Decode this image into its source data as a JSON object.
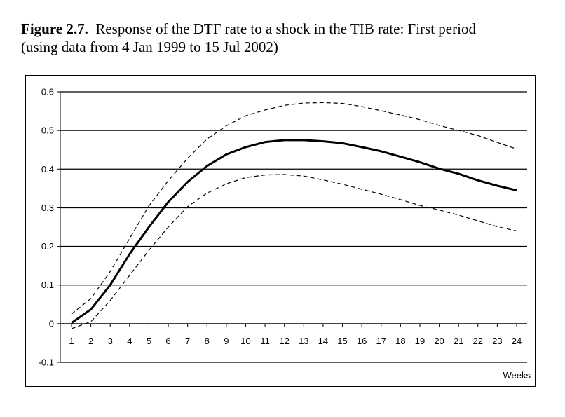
{
  "caption": {
    "label": "Figure 2.7.",
    "text": "Response of the DTF rate to a shock in the TIB rate: First period",
    "line2": "(using data from 4 Jan 1999 to 15 Jul 2002)"
  },
  "chart_data": {
    "type": "line",
    "title": "Figure 2.7. Response of the DTF rate to a shock in the TIB rate: First period (using data from 4 Jan 1999 to 15 Jul 2002)",
    "xlabel": "Weeks",
    "ylabel": "",
    "ylim": [
      -0.1,
      0.6
    ],
    "yticks": [
      -0.1,
      0,
      0.1,
      0.2,
      0.3,
      0.4,
      0.5,
      0.6
    ],
    "ytick_labels": [
      "-0.1",
      "0",
      "0.1",
      "0.2",
      "0.3",
      "0.4",
      "0.5",
      "0.6"
    ],
    "x": [
      1,
      2,
      3,
      4,
      5,
      6,
      7,
      8,
      9,
      10,
      11,
      12,
      13,
      14,
      15,
      16,
      17,
      18,
      19,
      20,
      21,
      22,
      23,
      24
    ],
    "grid": "horizontal",
    "series": [
      {
        "style": "solid",
        "values": [
          0.002,
          0.037,
          0.1,
          0.18,
          0.25,
          0.315,
          0.367,
          0.408,
          0.438,
          0.457,
          0.47,
          0.475,
          0.475,
          0.472,
          0.467,
          0.457,
          0.446,
          0.432,
          0.418,
          0.401,
          0.388,
          0.371,
          0.357,
          0.345
        ]
      },
      {
        "style": "dashed",
        "values": [
          0.025,
          0.065,
          0.135,
          0.22,
          0.305,
          0.37,
          0.428,
          0.478,
          0.512,
          0.538,
          0.553,
          0.565,
          0.571,
          0.572,
          0.57,
          0.562,
          0.551,
          0.54,
          0.528,
          0.513,
          0.5,
          0.487,
          0.469,
          0.452
        ]
      },
      {
        "style": "dashed",
        "values": [
          -0.013,
          0.005,
          0.06,
          0.125,
          0.19,
          0.25,
          0.303,
          0.338,
          0.362,
          0.378,
          0.385,
          0.386,
          0.382,
          0.372,
          0.361,
          0.348,
          0.335,
          0.321,
          0.306,
          0.294,
          0.281,
          0.266,
          0.251,
          0.24
        ]
      }
    ]
  }
}
